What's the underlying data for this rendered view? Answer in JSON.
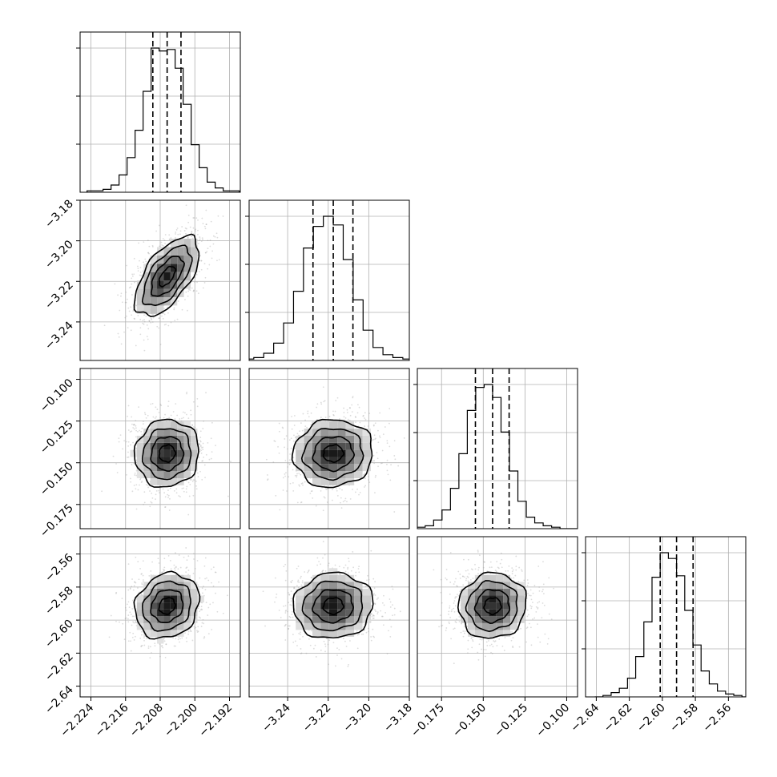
{
  "chart_data": {
    "type": "corner",
    "grid": true,
    "parameters": [
      {
        "mean": -2.2064,
        "sigma": 0.0037,
        "axis_range": [
          -2.2265,
          -2.1895
        ],
        "ticks": [
          "−2.224",
          "−2.216",
          "−2.208",
          "−2.200",
          "−2.192"
        ],
        "tick_values": [
          -2.224,
          -2.216,
          -2.208,
          -2.2,
          -2.192
        ],
        "quantiles": [
          -2.2097,
          -2.2064,
          -2.2032
        ]
      },
      {
        "mean": -3.2175,
        "sigma": 0.0098,
        "axis_range": [
          -3.259,
          -3.18
        ],
        "ticks": [
          "−3.18",
          "−3.20",
          "−3.22",
          "−3.24"
        ],
        "tick_values": [
          -3.18,
          -3.2,
          -3.22,
          -3.24
        ],
        "xticks": [
          "−3.24",
          "−3.22",
          "−3.20",
          "−3.18"
        ],
        "xtick_values": [
          -3.24,
          -3.22,
          -3.2,
          -3.18
        ],
        "quantiles": [
          -3.2275,
          -3.2175,
          -3.2078
        ]
      },
      {
        "mean": -0.1444,
        "sigma": 0.0101,
        "axis_range": [
          -0.1895,
          -0.0935
        ],
        "ticks": [
          "−0.100",
          "−0.125",
          "−0.150",
          "−0.175"
        ],
        "tick_values": [
          -0.1,
          -0.125,
          -0.15,
          -0.175
        ],
        "xticks": [
          "−0.175",
          "−0.150",
          "−0.125",
          "−0.100"
        ],
        "xtick_values": [
          -0.175,
          -0.15,
          -0.125,
          -0.1
        ],
        "quantiles": [
          -0.1547,
          -0.1444,
          -0.1345
        ]
      },
      {
        "mean": -2.5914,
        "sigma": 0.0099,
        "axis_range": [
          -2.6465,
          -2.5495
        ],
        "ticks": [
          "−2.56",
          "−2.58",
          "−2.60",
          "−2.62",
          "−2.64"
        ],
        "tick_values": [
          -2.56,
          -2.58,
          -2.6,
          -2.62,
          -2.64
        ],
        "xticks": [
          "−2.64",
          "−2.62",
          "−2.60",
          "−2.58",
          "−2.56"
        ],
        "xtick_values": [
          -2.64,
          -2.62,
          -2.6,
          -2.58,
          -2.56
        ],
        "quantiles": [
          -2.6013,
          -2.5914,
          -2.5814
        ]
      }
    ],
    "correlations": {
      "0-1": 0.6,
      "0-2": 0.05,
      "0-3": 0.15,
      "1-2": 0.05,
      "1-3": 0.05,
      "2-3": 0.05
    },
    "histograms": {
      "bins": 20,
      "counts": [
        [
          0.01,
          0.01,
          0.02,
          0.05,
          0.12,
          0.24,
          0.43,
          0.7,
          1.0,
          0.98,
          0.99,
          0.86,
          0.61,
          0.33,
          0.17,
          0.07,
          0.03,
          0.01,
          0.01,
          0.0
        ],
        [
          0.0,
          0.01,
          0.02,
          0.05,
          0.12,
          0.26,
          0.48,
          0.78,
          0.93,
          1.0,
          0.94,
          0.7,
          0.42,
          0.21,
          0.09,
          0.04,
          0.02,
          0.01,
          0.0,
          0.0
        ],
        [
          0.0,
          0.01,
          0.02,
          0.06,
          0.13,
          0.28,
          0.52,
          0.82,
          0.98,
          1.0,
          0.91,
          0.67,
          0.4,
          0.19,
          0.08,
          0.04,
          0.02,
          0.01,
          0.0,
          0.0
        ],
        [
          0.0,
          0.01,
          0.03,
          0.06,
          0.13,
          0.28,
          0.52,
          0.83,
          1.0,
          0.96,
          0.84,
          0.6,
          0.36,
          0.18,
          0.09,
          0.04,
          0.02,
          0.01,
          0.0,
          0.0
        ]
      ]
    },
    "contour_levels_sigma": [
      0.5,
      1.0,
      1.5,
      2.0
    ]
  }
}
